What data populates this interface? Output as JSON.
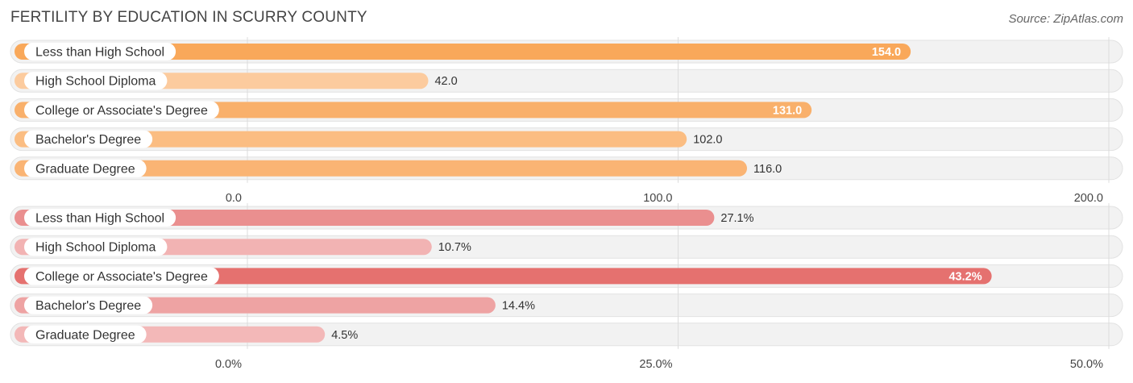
{
  "title": "FERTILITY BY EDUCATION IN SCURRY COUNTY",
  "source": "Source: ZipAtlas.com",
  "chart_data": [
    {
      "type": "bar",
      "orientation": "horizontal",
      "categories": [
        "Less than High School",
        "High School Diploma",
        "College or Associate's Degree",
        "Bachelor's Degree",
        "Graduate Degree"
      ],
      "values": [
        154.0,
        42.0,
        131.0,
        102.0,
        116.0
      ],
      "value_labels": [
        "154.0",
        "42.0",
        "131.0",
        "102.0",
        "116.0"
      ],
      "xlim": [
        0,
        200
      ],
      "ticks": [
        0,
        100,
        200
      ],
      "tick_labels": [
        "0.0",
        "100.0",
        "200.0"
      ],
      "colors": [
        "#f9a85a",
        "#fccb9e",
        "#f9b06b",
        "#fbbd82",
        "#fab474"
      ],
      "grid": true
    },
    {
      "type": "bar",
      "orientation": "horizontal",
      "categories": [
        "Less than High School",
        "High School Diploma",
        "College or Associate's Degree",
        "Bachelor's Degree",
        "Graduate Degree"
      ],
      "values": [
        27.1,
        10.7,
        43.2,
        14.4,
        4.5
      ],
      "value_labels": [
        "27.1%",
        "10.7%",
        "43.2%",
        "14.4%",
        "4.5%"
      ],
      "xlim": [
        0,
        50
      ],
      "ticks": [
        0,
        25,
        50
      ],
      "tick_labels": [
        "0.0%",
        "25.0%",
        "50.0%"
      ],
      "colors": [
        "#ea8f8f",
        "#f2b3b3",
        "#e5716f",
        "#eea3a3",
        "#f3b8b8"
      ],
      "grid": true
    }
  ]
}
